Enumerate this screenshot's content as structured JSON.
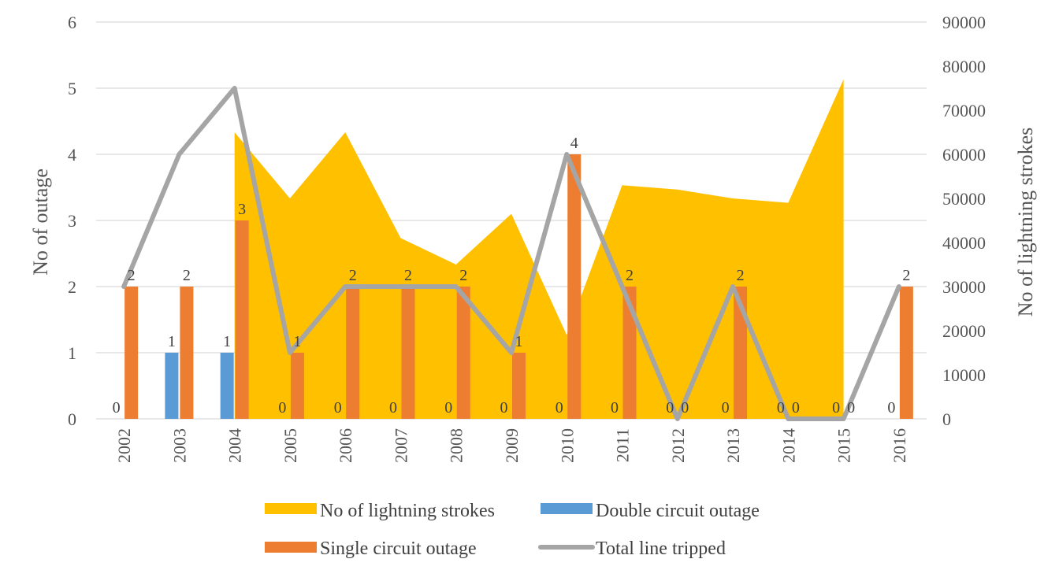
{
  "chart_data": {
    "type": "combo",
    "categories": [
      "2002",
      "2003",
      "2004",
      "2005",
      "2006",
      "2007",
      "2008",
      "2009",
      "2010",
      "2011",
      "2012",
      "2013",
      "2014",
      "2015",
      "2016"
    ],
    "y_left": {
      "label": "No of outage",
      "range": [
        0,
        6
      ],
      "ticks": [
        "0",
        "1",
        "2",
        "3",
        "4",
        "5",
        "6"
      ]
    },
    "y_right": {
      "label": "No of lightning strokes",
      "range": [
        0,
        90000
      ],
      "ticks": [
        "0",
        "10000",
        "20000",
        "30000",
        "40000",
        "50000",
        "60000",
        "70000",
        "80000",
        "90000"
      ]
    },
    "series": [
      {
        "name": "No of lightning strokes",
        "type": "area",
        "axis": "right",
        "color": "#FFC000",
        "values": [
          null,
          null,
          65000,
          50000,
          65000,
          41000,
          35000,
          46500,
          19000,
          53000,
          52000,
          50000,
          49000,
          77000,
          null
        ]
      },
      {
        "name": "Double circuit outage",
        "type": "bar",
        "axis": "left",
        "color": "#5B9BD5",
        "values": [
          0,
          1,
          1,
          0,
          0,
          0,
          0,
          0,
          0,
          0,
          0,
          0,
          0,
          0,
          0
        ],
        "labels": [
          "0",
          "1",
          "1",
          "0",
          "0",
          "0",
          "0",
          "0",
          "0",
          "0",
          "0",
          "0",
          "0",
          "0",
          "0"
        ]
      },
      {
        "name": "Single circuit outage",
        "type": "bar",
        "axis": "left",
        "color": "#ED7D31",
        "values": [
          2,
          2,
          3,
          1,
          2,
          2,
          2,
          1,
          4,
          2,
          0,
          2,
          0,
          0,
          2
        ],
        "labels": [
          "2",
          "2",
          "3",
          "1",
          "2",
          "2",
          "2",
          "1",
          "4",
          "2",
          "0",
          "2",
          "0",
          "0",
          "2"
        ]
      },
      {
        "name": "Total line tripped",
        "type": "line",
        "axis": "left",
        "color": "#A5A5A5",
        "values": [
          2,
          4,
          5,
          1,
          2,
          2,
          2,
          1,
          4,
          2,
          0,
          2,
          0,
          0,
          2
        ]
      }
    ],
    "legend": {
      "position": "bottom"
    }
  }
}
